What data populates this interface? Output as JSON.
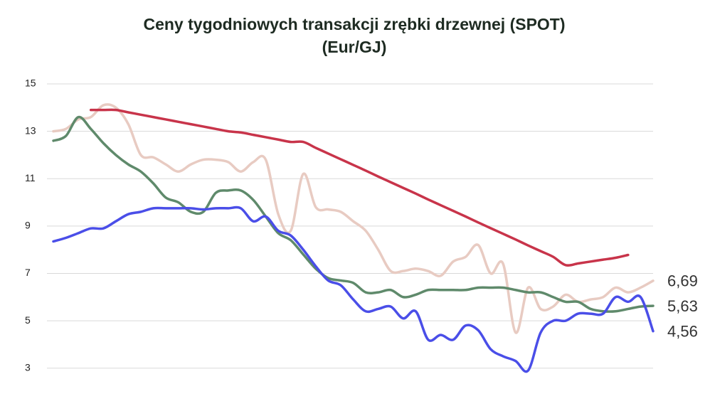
{
  "chart_data": {
    "type": "line",
    "title": [
      "Ceny tygodniowych transakcji zrębki drzewnej (SPOT)",
      "(Eur/GJ)"
    ],
    "categories": [
      null,
      null,
      null,
      null,
      null,
      null,
      null,
      null,
      null,
      null,
      null,
      null,
      null,
      null,
      null,
      null,
      null,
      null,
      null,
      null,
      null,
      null,
      null,
      null,
      null,
      null,
      null,
      null,
      null,
      null,
      null,
      null,
      null,
      null,
      null,
      null,
      null,
      null,
      null,
      null,
      null,
      null,
      null,
      null,
      null,
      null,
      null,
      null,
      null
    ],
    "ylim": [
      2,
      15
    ],
    "yticks": [
      3,
      5,
      7,
      9,
      11,
      13,
      15
    ],
    "grid": true,
    "series": [
      {
        "color": "#e8cbc2",
        "last_value_label": "6,69",
        "values": [
          13.0,
          13.1,
          13.5,
          13.6,
          14.1,
          14.0,
          13.3,
          12.0,
          11.9,
          11.6,
          11.3,
          11.6,
          11.8,
          11.8,
          11.7,
          11.3,
          11.7,
          11.8,
          9.5,
          8.8,
          11.2,
          9.8,
          9.7,
          9.6,
          9.2,
          8.8,
          8.0,
          7.1,
          7.1,
          7.2,
          7.1,
          6.9,
          7.5,
          7.7,
          8.2,
          7.0,
          7.4,
          4.5,
          6.4,
          5.5,
          5.6,
          6.1,
          5.8,
          5.9,
          6.0,
          6.4,
          6.2,
          6.4,
          6.69
        ]
      },
      {
        "color": "#5f8a6b",
        "last_value_label": "5,63",
        "values": [
          12.6,
          12.8,
          13.6,
          13.1,
          12.5,
          12.0,
          11.6,
          11.3,
          10.8,
          10.2,
          10.0,
          9.6,
          9.6,
          10.4,
          10.5,
          10.5,
          10.1,
          9.4,
          8.7,
          8.4,
          7.8,
          7.2,
          6.8,
          6.7,
          6.6,
          6.2,
          6.2,
          6.3,
          6.0,
          6.1,
          6.3,
          6.3,
          6.3,
          6.3,
          6.4,
          6.4,
          6.4,
          6.3,
          6.2,
          6.2,
          6.0,
          5.8,
          5.8,
          5.5,
          5.4,
          5.4,
          5.5,
          5.6,
          5.63
        ]
      },
      {
        "color": "#4a4ee8",
        "last_value_label": "4,56",
        "values": [
          8.35,
          8.5,
          8.7,
          8.9,
          8.9,
          9.2,
          9.5,
          9.6,
          9.75,
          9.75,
          9.75,
          9.75,
          9.7,
          9.75,
          9.75,
          9.75,
          9.2,
          9.4,
          8.8,
          8.6,
          8.0,
          7.3,
          6.7,
          6.5,
          5.9,
          5.4,
          5.5,
          5.6,
          5.1,
          5.4,
          4.2,
          4.4,
          4.2,
          4.8,
          4.6,
          3.8,
          3.5,
          3.3,
          2.9,
          4.5,
          5.0,
          5.0,
          5.3,
          5.3,
          5.3,
          6.0,
          5.8,
          6.0,
          4.56
        ]
      },
      {
        "color": "#c8344a",
        "values": [
          null,
          null,
          null,
          13.9,
          13.9,
          13.9,
          13.8,
          13.7,
          13.6,
          13.5,
          13.4,
          13.3,
          13.2,
          13.1,
          13.0,
          12.95,
          12.85,
          12.75,
          12.65,
          12.55,
          12.55,
          12.3,
          12.06,
          11.82,
          11.58,
          11.34,
          11.09,
          10.85,
          10.61,
          10.37,
          10.12,
          9.88,
          9.64,
          9.4,
          9.15,
          8.91,
          8.67,
          8.43,
          8.18,
          7.94,
          7.7,
          7.35,
          7.42,
          7.5,
          7.58,
          7.66,
          7.78,
          null,
          null
        ]
      }
    ]
  }
}
